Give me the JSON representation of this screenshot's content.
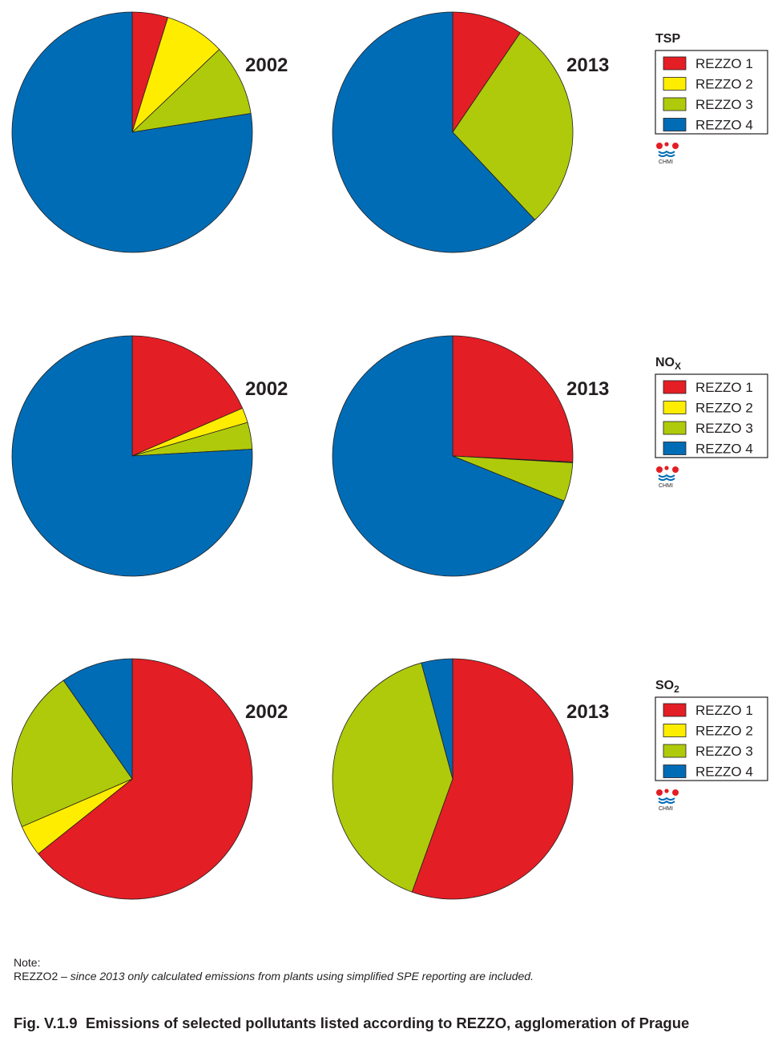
{
  "colors": {
    "REZZO 1": "#e31e24",
    "REZZO 2": "#ffed00",
    "REZZO 3": "#afca0b",
    "REZZO 4": "#006cb5"
  },
  "logo_text": "CHMI",
  "chart_data": [
    {
      "type": "pie",
      "pollutant": "TSP",
      "pollutant_sub": "",
      "legend": [
        "REZZO 1",
        "REZZO 2",
        "REZZO 3",
        "REZZO 4"
      ],
      "charts": [
        {
          "year": "2002",
          "labels": [
            "REZZO 1",
            "REZZO 2",
            "REZZO 3",
            "REZZO 4"
          ],
          "values": [
            4.8,
            8.1,
            9.6,
            77.5
          ]
        },
        {
          "year": "2013",
          "labels": [
            "REZZO 1",
            "REZZO 2",
            "REZZO 3",
            "REZZO 4"
          ],
          "values": [
            9.5,
            0.0,
            28.5,
            62.0
          ]
        }
      ]
    },
    {
      "type": "pie",
      "pollutant": "NO",
      "pollutant_sub": "X",
      "legend": [
        "REZZO 1",
        "REZZO 2",
        "REZZO 3",
        "REZZO 4"
      ],
      "charts": [
        {
          "year": "2002",
          "labels": [
            "REZZO 1",
            "REZZO 2",
            "REZZO 3",
            "REZZO 4"
          ],
          "values": [
            18.5,
            2.0,
            3.6,
            75.9
          ]
        },
        {
          "year": "2013",
          "labels": [
            "REZZO 1",
            "REZZO 2",
            "REZZO 3",
            "REZZO 4"
          ],
          "values": [
            25.8,
            0.1,
            5.2,
            68.9
          ]
        }
      ]
    },
    {
      "type": "pie",
      "pollutant": "SO",
      "pollutant_sub": "2",
      "legend": [
        "REZZO 1",
        "REZZO 2",
        "REZZO 3",
        "REZZO 4"
      ],
      "charts": [
        {
          "year": "2002",
          "labels": [
            "REZZO 1",
            "REZZO 2",
            "REZZO 3",
            "REZZO 4"
          ],
          "values": [
            64.3,
            4.2,
            21.8,
            9.7
          ]
        },
        {
          "year": "2013",
          "labels": [
            "REZZO 1",
            "REZZO 2",
            "REZZO 3",
            "REZZO 4"
          ],
          "values": [
            55.5,
            0.0,
            40.3,
            4.2
          ]
        }
      ]
    }
  ],
  "note": {
    "label": "Note:",
    "term": "REZZO2 –",
    "text": "since 2013 only calculated emissions from plants using simplified SPE reporting are included."
  },
  "caption": {
    "fig": "Fig. V.1.9",
    "title": "Emissions of selected pollutants listed according to REZZO, agglomeration of Prague"
  }
}
